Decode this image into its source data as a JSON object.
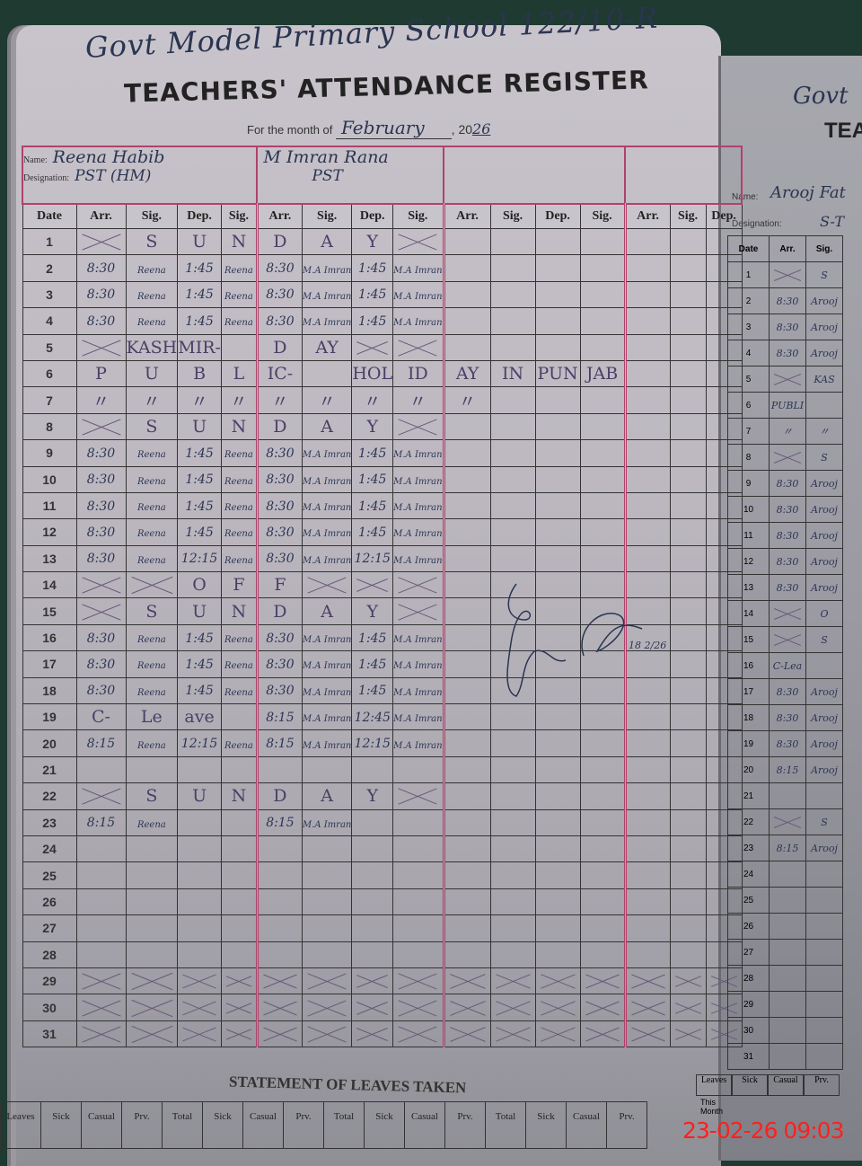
{
  "school_name": "Govt Model Primary School 122/10-R",
  "register_title": "TEACHERS' ATTENDANCE REGISTER",
  "month_label": "For the month of",
  "month_value": "February",
  "year_prefix": "20",
  "year_value": "26",
  "name_label": "Name:",
  "designation_label": "Designation:",
  "date_header": "Date",
  "column_headers": [
    "Arr.",
    "Sig.",
    "Dep.",
    "Sig."
  ],
  "teachers": [
    {
      "name": "Reena Habib",
      "designation": "PST (HM)"
    },
    {
      "name": "M Imran Rana",
      "designation": "PST"
    },
    {
      "name": "",
      "designation": ""
    },
    {
      "name": "",
      "designation": ""
    }
  ],
  "rows": [
    {
      "date": "1",
      "cells": [
        "",
        "S",
        "U",
        "N",
        "D",
        "A",
        "Y",
        ""
      ],
      "crossed": [
        0,
        7
      ]
    },
    {
      "date": "2",
      "cells": [
        "8:30",
        "Reena",
        "1:45",
        "Reena",
        "8:30",
        "M.A Imran",
        "1:45",
        "M.A Imran"
      ]
    },
    {
      "date": "3",
      "cells": [
        "8:30",
        "Reena",
        "1:45",
        "Reena",
        "8:30",
        "M.A Imran",
        "1:45",
        "M.A Imran"
      ]
    },
    {
      "date": "4",
      "cells": [
        "8:30",
        "Reena",
        "1:45",
        "Reena",
        "8:30",
        "M.A Imran",
        "1:45",
        "M.A Imran"
      ]
    },
    {
      "date": "5",
      "cells": [
        "",
        "KASH",
        "MIR-",
        "",
        "D",
        "AY",
        "",
        ""
      ],
      "crossed": [
        0,
        6,
        7
      ]
    },
    {
      "date": "6",
      "cells": [
        "P",
        "U",
        "B",
        "L",
        "IC-",
        "",
        "HOL",
        "ID",
        "AY",
        "IN",
        "PUN",
        "JAB"
      ]
    },
    {
      "date": "7",
      "cells": [
        "〃",
        "〃",
        "〃",
        "〃",
        "〃",
        "〃",
        "〃",
        "〃",
        "〃"
      ]
    },
    {
      "date": "8",
      "cells": [
        "",
        "S",
        "U",
        "N",
        "D",
        "A",
        "Y",
        ""
      ],
      "crossed": [
        0,
        7
      ]
    },
    {
      "date": "9",
      "cells": [
        "8:30",
        "Reena",
        "1:45",
        "Reena",
        "8:30",
        "M.A Imran",
        "1:45",
        "M.A Imran"
      ]
    },
    {
      "date": "10",
      "cells": [
        "8:30",
        "Reena",
        "1:45",
        "Reena",
        "8:30",
        "M.A Imran",
        "1:45",
        "M.A Imran"
      ]
    },
    {
      "date": "11",
      "cells": [
        "8:30",
        "Reena",
        "1:45",
        "Reena",
        "8:30",
        "M.A Imran",
        "1:45",
        "M.A Imran"
      ]
    },
    {
      "date": "12",
      "cells": [
        "8:30",
        "Reena",
        "1:45",
        "Reena",
        "8:30",
        "M.A Imran",
        "1:45",
        "M.A Imran"
      ]
    },
    {
      "date": "13",
      "cells": [
        "8:30",
        "Reena",
        "12:15",
        "Reena",
        "8:30",
        "M.A Imran",
        "12:15",
        "M.A Imran"
      ]
    },
    {
      "date": "14",
      "cells": [
        "",
        "",
        "O",
        "F",
        "F",
        "",
        "",
        ""
      ],
      "crossed": [
        0,
        1,
        5,
        6,
        7
      ]
    },
    {
      "date": "15",
      "cells": [
        "",
        "S",
        "U",
        "N",
        "D",
        "A",
        "Y",
        ""
      ],
      "crossed": [
        0,
        7
      ]
    },
    {
      "date": "16",
      "cells": [
        "8:30",
        "Reena",
        "1:45",
        "Reena",
        "8:30",
        "M.A Imran",
        "1:45",
        "M.A Imran"
      ]
    },
    {
      "date": "17",
      "cells": [
        "8:30",
        "Reena",
        "1:45",
        "Reena",
        "8:30",
        "M.A Imran",
        "1:45",
        "M.A Imran"
      ]
    },
    {
      "date": "18",
      "cells": [
        "8:30",
        "Reena",
        "1:45",
        "Reena",
        "8:30",
        "M.A Imran",
        "1:45",
        "M.A Imran"
      ]
    },
    {
      "date": "19",
      "cells": [
        "C-",
        "Le",
        "ave",
        "",
        "8:15",
        "M.A Imran",
        "12:45",
        "M.A Imran"
      ]
    },
    {
      "date": "20",
      "cells": [
        "8:15",
        "Reena",
        "12:15",
        "Reena",
        "8:15",
        "M.A Imran",
        "12:15",
        "M.A Imran"
      ]
    },
    {
      "date": "21",
      "cells": []
    },
    {
      "date": "22",
      "cells": [
        "",
        "S",
        "U",
        "N",
        "D",
        "A",
        "Y",
        ""
      ],
      "crossed": [
        0,
        7
      ]
    },
    {
      "date": "23",
      "cells": [
        "8:15",
        "Reena",
        "",
        "",
        "8:15",
        "M.A Imran"
      ]
    },
    {
      "date": "24",
      "cells": []
    },
    {
      "date": "25",
      "cells": []
    },
    {
      "date": "26",
      "cells": []
    },
    {
      "date": "27",
      "cells": []
    },
    {
      "date": "28",
      "cells": []
    },
    {
      "date": "29",
      "cells": []
    },
    {
      "date": "30",
      "cells": []
    },
    {
      "date": "31",
      "cells": []
    }
  ],
  "signature_date": "18 2/26",
  "leaves_title": "STATEMENT OF LEAVES TAKEN",
  "leaves_headers": [
    "Leaves",
    "Sick",
    "Casual",
    "Prv.",
    "Total",
    "Sick",
    "Casual",
    "Prv.",
    "Total",
    "Sick",
    "Casual",
    "Prv.",
    "Total",
    "Sick",
    "Casual",
    "Prv."
  ],
  "right_page": {
    "school_fragment": "Govt",
    "title_fragment": "TEA",
    "name": "Arooj Fat",
    "designation": "S-T",
    "headers": [
      "Date",
      "Arr.",
      "Sig."
    ],
    "rows": [
      [
        "1",
        "",
        "S"
      ],
      [
        "2",
        "8:30",
        "Arooj"
      ],
      [
        "3",
        "8:30",
        "Arooj"
      ],
      [
        "4",
        "8:30",
        "Arooj"
      ],
      [
        "5",
        "",
        "KAS"
      ],
      [
        "6",
        "PUBLI",
        ""
      ],
      [
        "7",
        "〃",
        "〃"
      ],
      [
        "8",
        "",
        "S"
      ],
      [
        "9",
        "8:30",
        "Arooj"
      ],
      [
        "10",
        "8:30",
        "Arooj"
      ],
      [
        "11",
        "8:30",
        "Arooj"
      ],
      [
        "12",
        "8:30",
        "Arooj"
      ],
      [
        "13",
        "8:30",
        "Arooj"
      ],
      [
        "14",
        "",
        "O"
      ],
      [
        "15",
        "",
        "S"
      ],
      [
        "16",
        "C-Lea",
        ""
      ],
      [
        "17",
        "8:30",
        "Arooj"
      ],
      [
        "18",
        "8:30",
        "Arooj"
      ],
      [
        "19",
        "8:30",
        "Arooj"
      ],
      [
        "20",
        "8:15",
        "Arooj"
      ],
      [
        "21",
        "",
        ""
      ],
      [
        "22",
        "",
        "S"
      ],
      [
        "23",
        "8:15",
        "Arooj"
      ],
      [
        "24",
        "",
        ""
      ],
      [
        "25",
        "",
        ""
      ],
      [
        "26",
        "",
        ""
      ],
      [
        "27",
        "",
        ""
      ],
      [
        "28",
        "",
        ""
      ],
      [
        "29",
        "",
        ""
      ],
      [
        "30",
        "",
        ""
      ],
      [
        "31",
        "",
        ""
      ]
    ],
    "leaves_headers": [
      "Leaves",
      "Sick",
      "Casual",
      "Prv."
    ],
    "this_month": "This Month"
  },
  "timestamp": "23-02-26  09:03",
  "colors": {
    "ink": "#2a3550",
    "ruling": "#b0426a",
    "timestamp": "#ff2020"
  }
}
